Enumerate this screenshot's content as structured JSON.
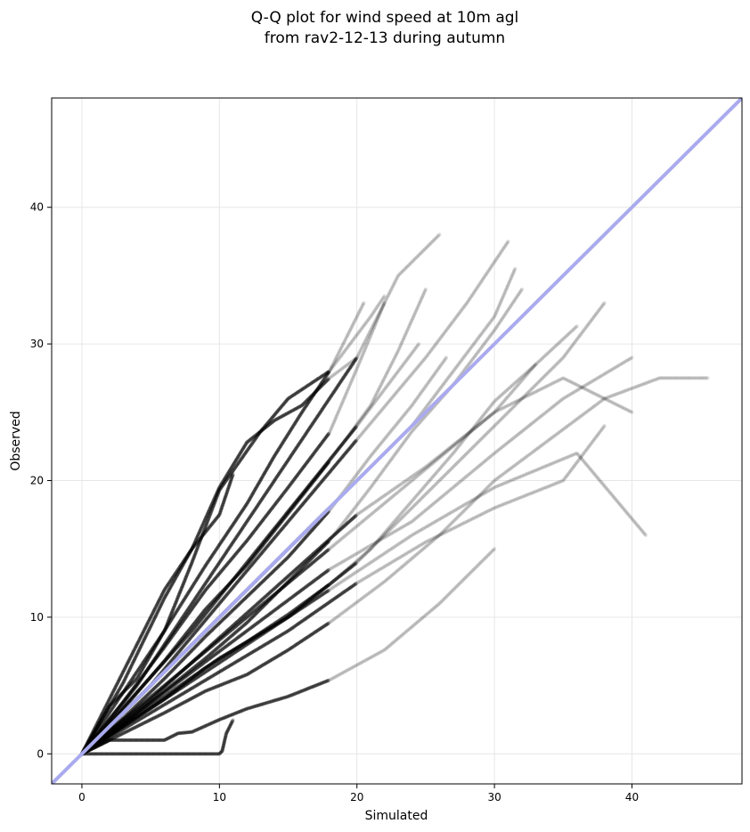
{
  "chart_data": {
    "type": "scatter",
    "title_lines": [
      "Q-Q plot for wind speed at 10m agl",
      "from rav2-12-13 during autumn"
    ],
    "xlabel": "Simulated",
    "ylabel": "Observed",
    "xlim": [
      -2.2,
      48
    ],
    "ylim": [
      -2.2,
      48
    ],
    "xticks": [
      0,
      10,
      20,
      30,
      40
    ],
    "yticks": [
      0,
      10,
      20,
      30,
      40
    ],
    "grid": true,
    "reference_line": {
      "from": [
        -2.2,
        -2.2
      ],
      "to": [
        48,
        48
      ],
      "color": "#aaaaee"
    },
    "marker_color": "#000000",
    "series": [
      {
        "values": [
          [
            0,
            0
          ],
          [
            2,
            0
          ],
          [
            4,
            0
          ],
          [
            6,
            0
          ],
          [
            8,
            0
          ],
          [
            10,
            0
          ],
          [
            10.2,
            0.2
          ],
          [
            10.5,
            1.5
          ],
          [
            11,
            2.5
          ]
        ]
      },
      {
        "values": [
          [
            0,
            0
          ],
          [
            2,
            1
          ],
          [
            4,
            1
          ],
          [
            6,
            1
          ],
          [
            7,
            1.5
          ],
          [
            8,
            1.6
          ],
          [
            10,
            2.5
          ],
          [
            12,
            3.3
          ],
          [
            15,
            4.2
          ],
          [
            18,
            5.4
          ],
          [
            22,
            7.6
          ],
          [
            26,
            11
          ],
          [
            30,
            15
          ]
        ]
      },
      {
        "values": [
          [
            0,
            0
          ],
          [
            3,
            1.5
          ],
          [
            6,
            3
          ],
          [
            9,
            4.6
          ],
          [
            12,
            5.8
          ],
          [
            15,
            7.6
          ],
          [
            18,
            9.6
          ],
          [
            22,
            12.6
          ],
          [
            26,
            16
          ],
          [
            30,
            20
          ],
          [
            34,
            23
          ],
          [
            38,
            26
          ],
          [
            42,
            27.5
          ],
          [
            45.5,
            27.5
          ]
        ]
      },
      {
        "values": [
          [
            0,
            0
          ],
          [
            3,
            2
          ],
          [
            6,
            4
          ],
          [
            9,
            6.3
          ],
          [
            12,
            8.2
          ],
          [
            15,
            10.2
          ],
          [
            18,
            12.4
          ],
          [
            21,
            15
          ],
          [
            24,
            18.5
          ],
          [
            27,
            22
          ],
          [
            30,
            25.8
          ],
          [
            33,
            28.5
          ],
          [
            36,
            31.3
          ]
        ]
      },
      {
        "values": [
          [
            0,
            0
          ],
          [
            3,
            2.2
          ],
          [
            6,
            4.6
          ],
          [
            9,
            7
          ],
          [
            12,
            9.6
          ],
          [
            15,
            12.6
          ],
          [
            18,
            15.6
          ],
          [
            21,
            19.5
          ],
          [
            24,
            23.6
          ],
          [
            27,
            27
          ],
          [
            30,
            31
          ],
          [
            32,
            34
          ]
        ]
      },
      {
        "values": [
          [
            0,
            0
          ],
          [
            3,
            2.6
          ],
          [
            6,
            5.5
          ],
          [
            9,
            8.6
          ],
          [
            12,
            11.5
          ],
          [
            15,
            14.4
          ],
          [
            18,
            17.8
          ],
          [
            21,
            21.8
          ],
          [
            24,
            25.5
          ],
          [
            26.5,
            29
          ]
        ]
      },
      {
        "values": [
          [
            0,
            0
          ],
          [
            3,
            3
          ],
          [
            6,
            6
          ],
          [
            9,
            9
          ],
          [
            12,
            12
          ],
          [
            15,
            15
          ],
          [
            18,
            18
          ],
          [
            21,
            21
          ],
          [
            24,
            24
          ],
          [
            27,
            28
          ],
          [
            30,
            32
          ],
          [
            31.5,
            35.5
          ]
        ]
      },
      {
        "values": [
          [
            0,
            0
          ],
          [
            3,
            3.3
          ],
          [
            6,
            6.8
          ],
          [
            9,
            10.6
          ],
          [
            12,
            13.8
          ],
          [
            15,
            17.6
          ],
          [
            18,
            21.4
          ],
          [
            21,
            25.5
          ],
          [
            23,
            29.5
          ],
          [
            25,
            34
          ]
        ]
      },
      {
        "values": [
          [
            0,
            0
          ],
          [
            3,
            3.8
          ],
          [
            6,
            7.8
          ],
          [
            9,
            12
          ],
          [
            12,
            15.6
          ],
          [
            15,
            19.5
          ],
          [
            18,
            23.5
          ],
          [
            20,
            28.2
          ],
          [
            22,
            33
          ]
        ]
      },
      {
        "values": [
          [
            0,
            0
          ],
          [
            3,
            4.5
          ],
          [
            6,
            9
          ],
          [
            9,
            13.8
          ],
          [
            12,
            18.3
          ],
          [
            14,
            21.8
          ],
          [
            16,
            25
          ],
          [
            18,
            28
          ],
          [
            20.5,
            33
          ]
        ]
      },
      {
        "values": [
          [
            0,
            0
          ],
          [
            3,
            5.2
          ],
          [
            6,
            11.4
          ],
          [
            8,
            15
          ],
          [
            10,
            19.5
          ],
          [
            12,
            22.8
          ],
          [
            14,
            24.4
          ],
          [
            16,
            25.5
          ],
          [
            18,
            27.5
          ],
          [
            20,
            29
          ]
        ]
      },
      {
        "values": [
          [
            0,
            0
          ],
          [
            2,
            3.5
          ],
          [
            4,
            5.5
          ],
          [
            6,
            9
          ],
          [
            8,
            14
          ],
          [
            10,
            19.3
          ],
          [
            13,
            23.6
          ],
          [
            15,
            26
          ],
          [
            18,
            28
          ],
          [
            21,
            32
          ],
          [
            22,
            33.5
          ]
        ]
      },
      {
        "values": [
          [
            0,
            0
          ],
          [
            2,
            4
          ],
          [
            4,
            8
          ],
          [
            6,
            12
          ],
          [
            8,
            15
          ],
          [
            10,
            17.5
          ],
          [
            11,
            20.5
          ]
        ]
      },
      {
        "values": [
          [
            0,
            0
          ],
          [
            4,
            5
          ],
          [
            8,
            11
          ],
          [
            12,
            17
          ],
          [
            16,
            23
          ],
          [
            20,
            29
          ],
          [
            23,
            35
          ],
          [
            26,
            38
          ]
        ]
      },
      {
        "values": [
          [
            0,
            0
          ],
          [
            5,
            5
          ],
          [
            10,
            11
          ],
          [
            15,
            17
          ],
          [
            20,
            23
          ],
          [
            25,
            29
          ],
          [
            28,
            33
          ],
          [
            31,
            37.5
          ]
        ]
      },
      {
        "values": [
          [
            0,
            0
          ],
          [
            5,
            4
          ],
          [
            10,
            8.5
          ],
          [
            15,
            13
          ],
          [
            20,
            17.5
          ],
          [
            25,
            21
          ],
          [
            30,
            25
          ],
          [
            35,
            27.5
          ],
          [
            40,
            25
          ]
        ]
      },
      {
        "values": [
          [
            0,
            0
          ],
          [
            6,
            4
          ],
          [
            12,
            8
          ],
          [
            18,
            12
          ],
          [
            24,
            16
          ],
          [
            30,
            19.5
          ],
          [
            36,
            22
          ],
          [
            41,
            16
          ]
        ]
      },
      {
        "values": [
          [
            0,
            0
          ],
          [
            5,
            3
          ],
          [
            10,
            6
          ],
          [
            15,
            9
          ],
          [
            20,
            12.5
          ],
          [
            25,
            15.5
          ],
          [
            30,
            18
          ],
          [
            35,
            20
          ],
          [
            38,
            24
          ]
        ]
      },
      {
        "values": [
          [
            0,
            0
          ],
          [
            5,
            3.5
          ],
          [
            10,
            7
          ],
          [
            15,
            10
          ],
          [
            20,
            14
          ],
          [
            25,
            19
          ],
          [
            30,
            24
          ],
          [
            35,
            29
          ],
          [
            38,
            33
          ]
        ]
      },
      {
        "values": [
          [
            0,
            0
          ],
          [
            6,
            5
          ],
          [
            12,
            10
          ],
          [
            18,
            15
          ],
          [
            24,
            20
          ],
          [
            30,
            25
          ],
          [
            33,
            28.5
          ]
        ]
      },
      {
        "values": [
          [
            0,
            0
          ],
          [
            4,
            4.5
          ],
          [
            8,
            9
          ],
          [
            12,
            14
          ],
          [
            16,
            19
          ],
          [
            20,
            24
          ],
          [
            23,
            28
          ],
          [
            24.5,
            30
          ]
        ]
      },
      {
        "values": [
          [
            0,
            0
          ],
          [
            6,
            4.5
          ],
          [
            12,
            9
          ],
          [
            18,
            13.5
          ],
          [
            24,
            17
          ],
          [
            30,
            22
          ],
          [
            35,
            26
          ],
          [
            40,
            29
          ]
        ]
      }
    ]
  }
}
